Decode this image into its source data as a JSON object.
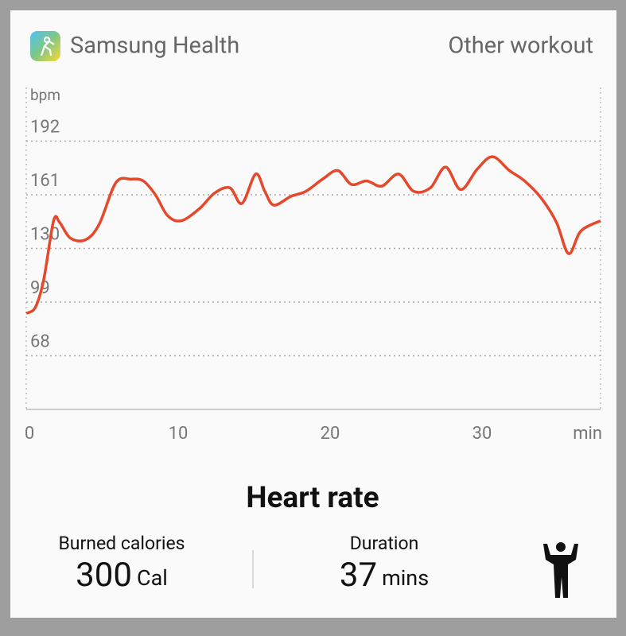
{
  "header": {
    "app_name": "Samsung Health",
    "workout": "Other workout"
  },
  "chart_data": {
    "type": "line",
    "title": "Heart rate",
    "y_label": "bpm",
    "x_label": "min",
    "x": [
      0,
      0.6,
      1.15,
      1.8,
      2.2,
      2.9,
      3.9,
      4.8,
      5.9,
      6.9,
      7.7,
      8.5,
      9.3,
      10.2,
      11.4,
      12.4,
      13.4,
      14.2,
      15.1,
      15.7,
      16.3,
      17.4,
      18.4,
      19.5,
      20.5,
      21.4,
      22.4,
      23.4,
      24.5,
      25.5,
      26.6,
      27.6,
      28.6,
      29.7,
      30.7,
      31.8,
      32.8,
      33.9,
      34.9,
      35.7,
      36.5,
      37.8
    ],
    "series": [
      {
        "color": "#e5482b",
        "values": [
          92.5,
          96,
          112,
          146,
          145,
          136,
          135,
          144,
          168,
          170,
          169,
          161,
          149,
          146,
          153,
          162,
          165,
          156,
          173,
          163,
          155,
          160,
          163,
          170,
          175,
          167,
          169,
          166,
          173,
          163,
          165,
          177,
          164,
          176,
          183,
          175,
          169,
          159,
          145,
          127,
          140,
          146
        ]
      }
    ],
    "xlim": [
      0,
      37.8
    ],
    "ylim": [
      37,
      223
    ],
    "xticks": [
      0,
      10,
      20,
      30
    ],
    "yticks": [
      68,
      99,
      130,
      161,
      192
    ],
    "grid": true
  },
  "stats": [
    {
      "label": "Burned calories",
      "value": 300,
      "unit": "Cal"
    },
    {
      "label": "Duration",
      "value": 37,
      "unit": "mins"
    }
  ]
}
